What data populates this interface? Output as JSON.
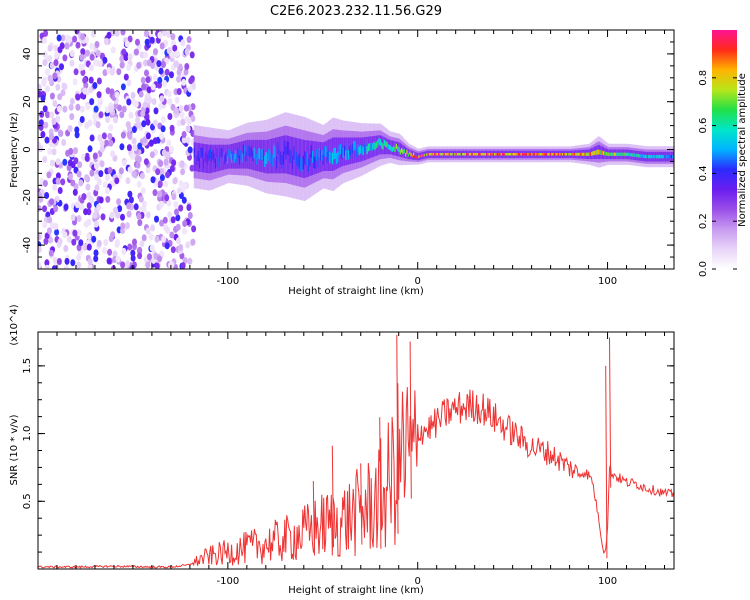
{
  "title": "C2E6.2023.232.11.56.G29",
  "colors": {
    "snr_line": "#ee3333",
    "axis": "#000000",
    "background": "#ffffff",
    "colormap": [
      "#ffffff",
      "#e8d5f8",
      "#c79af0",
      "#9a4ee8",
      "#6a1ef0",
      "#2b2bff",
      "#00b4ff",
      "#00e6c8",
      "#22e046",
      "#b8e61a",
      "#ffb400",
      "#ff2a1a",
      "#ff1493"
    ]
  },
  "chart_data": [
    {
      "type": "heatmap",
      "title": "C2E6.2023.232.11.56.G29",
      "xlabel": "Height of straight line (km)",
      "ylabel": "Frequency (Hz)",
      "xlim": [
        -200,
        135
      ],
      "ylim": [
        -50,
        50
      ],
      "xticks": [
        -100,
        0,
        100
      ],
      "yticks": [
        -40,
        -20,
        0,
        20,
        40
      ],
      "colorbar": {
        "label": "Normalized spectral amplitude",
        "range": [
          0,
          1
        ],
        "ticks": [
          0.0,
          0.2,
          0.4,
          0.6,
          0.8
        ]
      },
      "noise_region_x": [
        -200,
        -118
      ],
      "ridge": {
        "x": [
          -118,
          -110,
          -100,
          -90,
          -80,
          -70,
          -60,
          -50,
          -45,
          -40,
          -30,
          -20,
          -15,
          -10,
          -5,
          0,
          5,
          10,
          20,
          40,
          60,
          80,
          90,
          95,
          100,
          110,
          120,
          135
        ],
        "freq_hz": [
          -3,
          -4,
          -3,
          -2,
          -3,
          -2,
          -4,
          -3,
          -2,
          -1,
          0,
          2,
          1,
          0,
          -2,
          -3,
          -2,
          -2,
          -2,
          -2,
          -2,
          -2,
          -2,
          -1,
          -2,
          -2,
          -3,
          -3
        ],
        "amplitude": [
          0.35,
          0.4,
          0.45,
          0.45,
          0.5,
          0.45,
          0.45,
          0.45,
          0.5,
          0.5,
          0.55,
          0.6,
          0.65,
          0.7,
          0.8,
          0.95,
          0.9,
          0.9,
          0.9,
          0.9,
          0.9,
          0.88,
          0.85,
          0.8,
          0.8,
          0.65,
          0.55,
          0.5
        ],
        "spread_hz": [
          6,
          6,
          5,
          6,
          7,
          8,
          8,
          6,
          7,
          6,
          5,
          4,
          3,
          3,
          2,
          1.5,
          1.5,
          1.5,
          1.5,
          1.5,
          1.5,
          1.5,
          2,
          3,
          2,
          2,
          2,
          2
        ]
      }
    },
    {
      "type": "line",
      "xlabel": "Height of straight line (km)",
      "ylabel": "SNR (10 * v/v)",
      "y_multiplier": "(x10^4)",
      "xlim": [
        -200,
        135
      ],
      "ylim": [
        0,
        17500
      ],
      "xticks": [
        -100,
        0,
        100
      ],
      "yticks": [
        5000,
        10000,
        15000
      ],
      "ytick_labels": [
        "0.5",
        "1.0",
        "1.5"
      ],
      "series": [
        {
          "x": [
            -200,
            -180,
            -160,
            -140,
            -130,
            -120,
            -115,
            -110,
            -105,
            -100,
            -95,
            -90,
            -85,
            -80,
            -75,
            -70,
            -65,
            -60,
            -55,
            -50,
            -45,
            -40,
            -35,
            -30,
            -25,
            -20,
            -15,
            -12,
            -10,
            -8,
            -5,
            -3,
            0,
            5,
            10,
            15,
            20,
            25,
            30,
            35,
            40,
            45,
            50,
            55,
            60,
            65,
            70,
            75,
            80,
            85,
            88,
            90,
            92,
            95,
            97,
            98,
            99,
            100,
            101,
            102,
            103,
            105,
            110,
            115,
            120,
            125,
            130,
            135
          ],
          "values": [
            150,
            150,
            200,
            150,
            150,
            300,
            900,
            1200,
            1400,
            1600,
            1800,
            2000,
            2200,
            2400,
            2600,
            2800,
            3100,
            3400,
            3800,
            4100,
            4400,
            4600,
            5000,
            5500,
            6000,
            6800,
            8000,
            9500,
            10200,
            10600,
            10800,
            10500,
            10200,
            10300,
            10800,
            11500,
            11800,
            12000,
            12100,
            11800,
            11200,
            10600,
            10100,
            9500,
            9000,
            8800,
            8500,
            8000,
            7500,
            7000,
            7200,
            6900,
            6500,
            4000,
            2000,
            1200,
            1500,
            3000,
            7500,
            7200,
            7000,
            6800,
            6400,
            6300,
            6000,
            5800,
            5600,
            5500
          ],
          "spikes": [
            {
              "x": -55,
              "values": [
                6500,
                1000
              ]
            },
            {
              "x": -45,
              "values": [
                9100,
                1600
              ]
            },
            {
              "x": -30,
              "values": [
                7800,
                1800
              ]
            },
            {
              "x": -20,
              "values": [
                11200,
                1500
              ]
            },
            {
              "x": -11,
              "values": [
                17300,
                2600
              ]
            },
            {
              "x": -4,
              "values": [
                16800,
                5200
              ]
            },
            {
              "x": 99,
              "values": [
                15000,
                800
              ]
            },
            {
              "x": 101,
              "values": [
                17100,
                6000
              ]
            }
          ]
        }
      ]
    }
  ]
}
